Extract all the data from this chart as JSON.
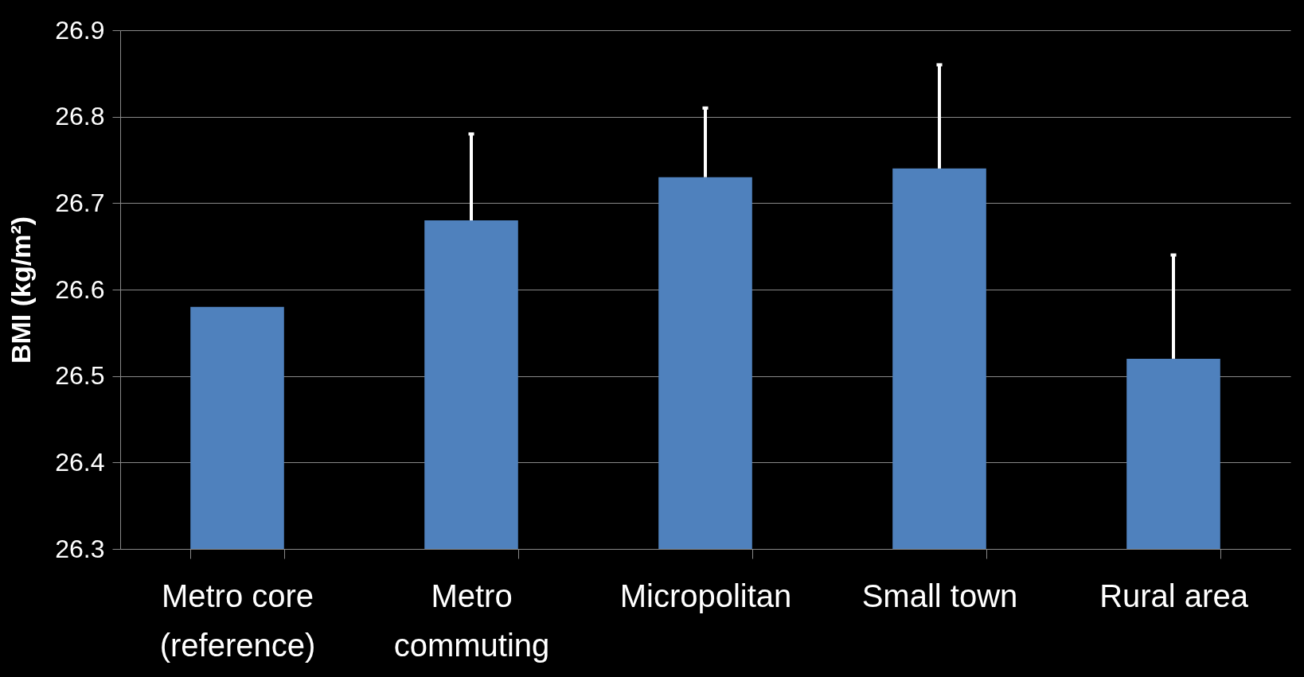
{
  "chart_data": {
    "type": "bar",
    "ylabel": "BMI (kg/m²)",
    "categories": [
      "Metro core\n(reference)",
      "Metro\ncommuting",
      "Micropolitan",
      "Small town",
      "Rural area"
    ],
    "values": [
      26.58,
      26.68,
      26.73,
      26.74,
      26.52
    ],
    "errors": [
      null,
      [
        26.68,
        26.78
      ],
      [
        26.73,
        26.81
      ],
      [
        26.74,
        26.86
      ],
      [
        26.52,
        26.64
      ]
    ],
    "color": "#4f81bd",
    "ylim": [
      26.3,
      26.9
    ],
    "yticks": [
      26.3,
      26.4,
      26.5,
      26.6,
      26.7,
      26.8,
      26.9
    ],
    "grid": "y"
  }
}
